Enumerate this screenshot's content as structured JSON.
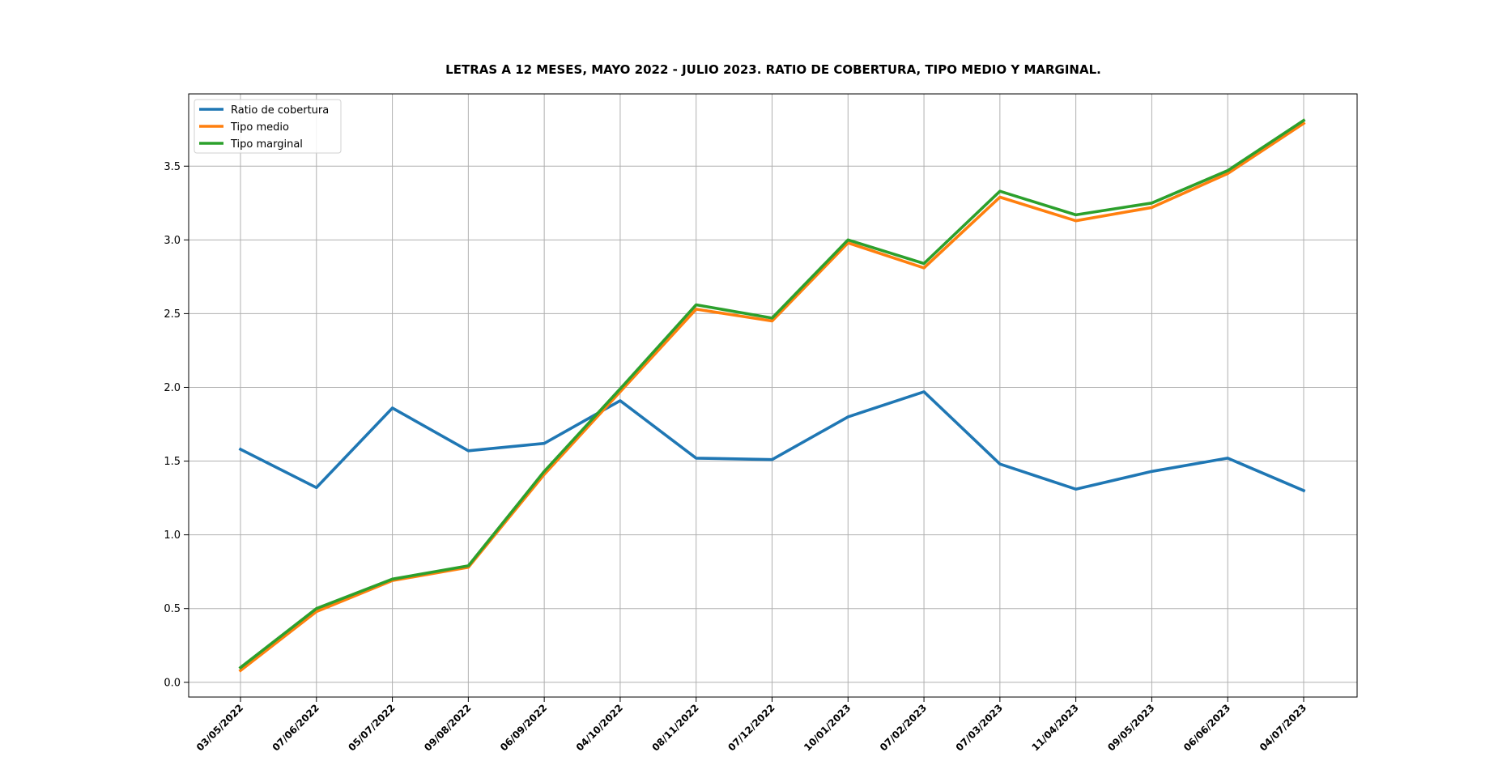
{
  "chart_data": {
    "type": "line",
    "title": "LETRAS A 12 MESES, MAYO 2022 - JULIO 2023. RATIO DE COBERTURA, TIPO MEDIO Y MARGINAL.",
    "xlabel": "",
    "ylabel": "",
    "categories": [
      "03/05/2022",
      "07/06/2022",
      "05/07/2022",
      "09/08/2022",
      "06/09/2022",
      "04/10/2022",
      "08/11/2022",
      "07/12/2022",
      "10/01/2023",
      "07/02/2023",
      "07/03/2023",
      "11/04/2023",
      "09/05/2023",
      "06/06/2023",
      "04/07/2023"
    ],
    "ylim": [
      -0.1,
      3.99
    ],
    "yticks": [
      "0.0",
      "0.5",
      "1.0",
      "1.5",
      "2.0",
      "2.5",
      "3.0",
      "3.5"
    ],
    "grid": true,
    "legend_position": "top-left",
    "series": [
      {
        "name": "Ratio de cobertura",
        "color": "#1f77b4",
        "values": [
          1.58,
          1.32,
          1.86,
          1.57,
          1.62,
          1.91,
          1.52,
          1.51,
          1.8,
          1.97,
          1.48,
          1.31,
          1.43,
          1.52,
          1.3
        ]
      },
      {
        "name": "Tipo medio",
        "color": "#ff7f0e",
        "values": [
          0.08,
          0.48,
          0.69,
          0.78,
          1.41,
          1.97,
          2.53,
          2.45,
          2.98,
          2.81,
          3.29,
          3.13,
          3.22,
          3.45,
          3.79
        ]
      },
      {
        "name": "Tipo marginal",
        "color": "#2ca02c",
        "values": [
          0.1,
          0.5,
          0.7,
          0.79,
          1.43,
          1.99,
          2.56,
          2.47,
          3.0,
          2.84,
          3.33,
          3.17,
          3.25,
          3.47,
          3.81
        ]
      }
    ]
  }
}
